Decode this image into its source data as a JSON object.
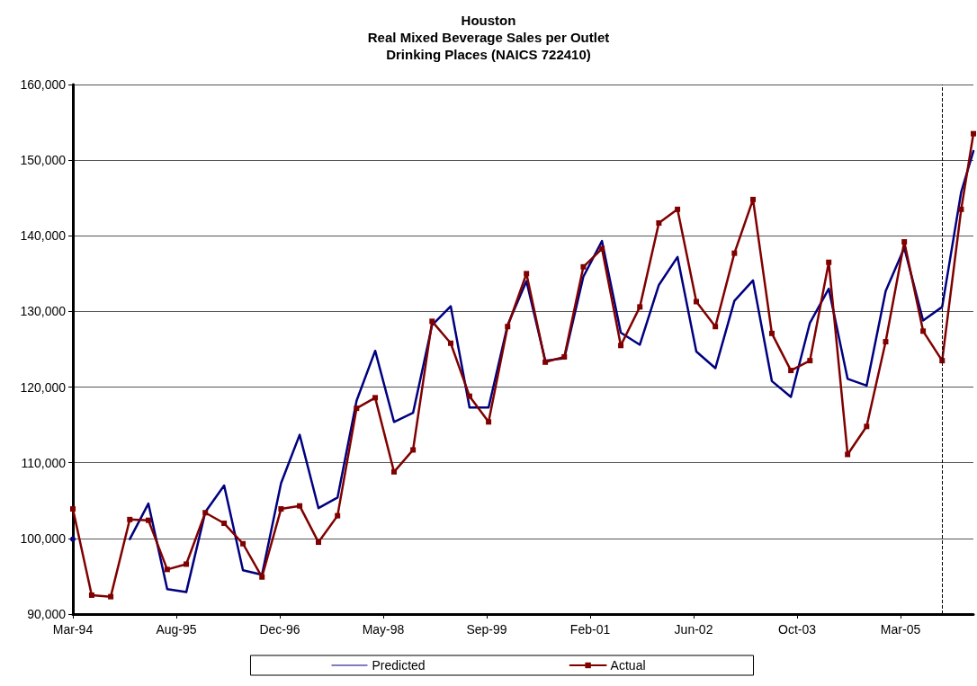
{
  "chart_data": {
    "type": "line",
    "title": "Houston\nReal Mixed Beverage Sales per Outlet\nDrinking Places (NAICS 722410)",
    "x": [
      "1994-03-31",
      "1994-06-30",
      "1994-09-30",
      "1994-12-31",
      "1995-03-31",
      "1995-06-30",
      "1995-09-30",
      "1995-12-31",
      "1996-03-31",
      "1996-06-30",
      "1996-09-30",
      "1996-12-31",
      "1997-03-31",
      "1997-06-30",
      "1997-09-30",
      "1997-12-31",
      "1998-03-31",
      "1998-06-30",
      "1998-09-30",
      "1998-12-31",
      "1999-03-31",
      "1999-06-30",
      "1999-09-30",
      "1999-12-31",
      "2000-03-31",
      "2000-06-30",
      "2000-09-30",
      "2000-12-31",
      "2001-03-31",
      "2001-06-30",
      "2001-09-30",
      "2001-12-31",
      "2002-03-31",
      "2002-06-30",
      "2002-09-30",
      "2002-12-31",
      "2003-03-31",
      "2003-06-30",
      "2003-09-30",
      "2003-12-31",
      "2004-03-31",
      "2004-06-30",
      "2004-09-30",
      "2004-12-31",
      "2005-03-31",
      "2005-06-30",
      "2005-09-30",
      "2005-12-31",
      "2006-02-28"
    ],
    "series": [
      {
        "name": "Predicted",
        "color": "#000080",
        "marker": "none",
        "values": [
          99900,
          null,
          null,
          99900,
          104600,
          93300,
          92900,
          103500,
          107000,
          95800,
          95200,
          107300,
          113700,
          104000,
          105400,
          118200,
          124800,
          115400,
          116600,
          128200,
          130700,
          117300,
          117300,
          128200,
          134000,
          123500,
          123800,
          134600,
          139300,
          127200,
          125600,
          133500,
          137200,
          124700,
          122500,
          131400,
          134100,
          120800,
          118700,
          128500,
          133000,
          121100,
          120200,
          132700,
          138400,
          128800,
          130600,
          145800,
          151200
        ]
      },
      {
        "name": "Actual",
        "color": "#800000",
        "marker": "square",
        "values": [
          103900,
          92500,
          92300,
          102500,
          102400,
          95900,
          96600,
          103400,
          102000,
          99300,
          94900,
          103900,
          104300,
          99500,
          103000,
          117200,
          118600,
          108800,
          111700,
          128700,
          125800,
          118800,
          115400,
          128000,
          135000,
          123300,
          124000,
          135900,
          138300,
          125500,
          130600,
          141700,
          143500,
          131300,
          128000,
          137700,
          144800,
          127100,
          122200,
          123500,
          136500,
          111100,
          114800,
          126000,
          139200,
          127400,
          123500,
          143500,
          153500
        ]
      }
    ],
    "xlim": [
      "1994-03-31",
      "2006-02-28"
    ],
    "xticks": [
      {
        "value": "1994-03-31",
        "label": "Mar-94"
      },
      {
        "value": "1995-08-13",
        "label": "Aug-95"
      },
      {
        "value": "1996-12-25",
        "label": "Dec-96"
      },
      {
        "value": "1998-05-09",
        "label": "May-98"
      },
      {
        "value": "1999-09-21",
        "label": "Sep-99"
      },
      {
        "value": "2001-02-02",
        "label": "Feb-01"
      },
      {
        "value": "2002-06-17",
        "label": "Jun-02"
      },
      {
        "value": "2003-10-30",
        "label": "Oct-03"
      },
      {
        "value": "2005-03-13",
        "label": "Mar-05"
      }
    ],
    "ylim": [
      90000,
      160000
    ],
    "yticks": [
      {
        "value": 90000,
        "label": "90,000"
      },
      {
        "value": 100000,
        "label": "100,000"
      },
      {
        "value": 110000,
        "label": "110,000"
      },
      {
        "value": 120000,
        "label": "120,000"
      },
      {
        "value": 130000,
        "label": "130,000"
      },
      {
        "value": 140000,
        "label": "140,000"
      },
      {
        "value": 150000,
        "label": "150,000"
      },
      {
        "value": 160000,
        "label": "160,000"
      }
    ],
    "ref_lines": [
      {
        "axis": "x",
        "value": "2005-09-30",
        "label": null,
        "color": "#000000",
        "line_style": "dashed"
      }
    ],
    "grid": "y",
    "legend": "bottom",
    "line_style": "solid"
  }
}
